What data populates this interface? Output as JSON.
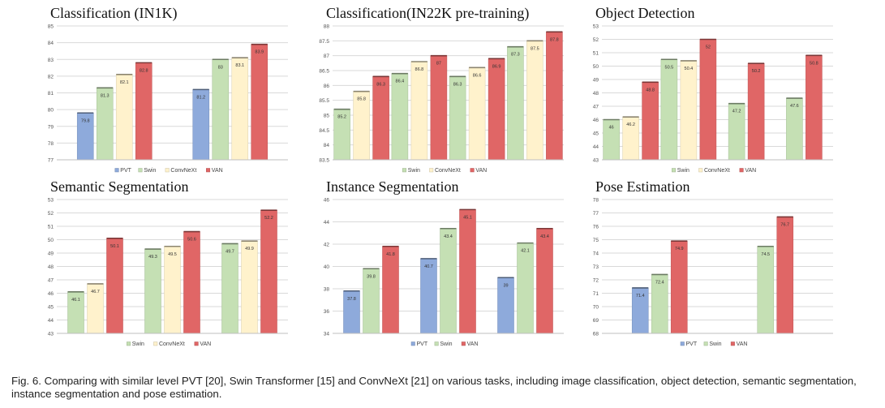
{
  "caption": "Fig. 6. Comparing with similar level PVT [20], Swin Transformer [15] and ConvNeXt [21] on various tasks, including image classification, object detection, semantic segmentation, instance segmentation and pose estimation.",
  "colors": {
    "PVT": "#8eaadb",
    "Swin": "#c5e0b4",
    "ConvNeXt": "#fff2cc",
    "VAN": "#e06666"
  },
  "chart_data": [
    {
      "type": "bar",
      "title": "Classification (IN1K)",
      "ylim": [
        77,
        85
      ],
      "ticks": [
        77,
        78,
        79,
        80,
        81,
        82,
        83,
        84,
        85
      ],
      "grid": true,
      "legend_position": "bottom",
      "legend": [
        "PVT",
        "Swin",
        "ConvNeXt",
        "VAN"
      ],
      "groups": [
        [
          {
            "series": "PVT",
            "value": 79.8,
            "label": "79.8"
          },
          {
            "series": "Swin",
            "value": 81.3,
            "label": "81.3"
          },
          {
            "series": "ConvNeXt",
            "value": 82.1,
            "label": "82.1"
          },
          {
            "series": "VAN",
            "value": 82.8,
            "label": "82.8"
          }
        ],
        [
          {
            "series": "PVT",
            "value": 81.2,
            "label": "81.2"
          },
          {
            "series": "Swin",
            "value": 83.0,
            "label": "83"
          },
          {
            "series": "ConvNeXt",
            "value": 83.1,
            "label": "83.1"
          },
          {
            "series": "VAN",
            "value": 83.9,
            "label": "83.9"
          }
        ]
      ]
    },
    {
      "type": "bar",
      "title": "Classification(IN22K pre-training)",
      "ylim": [
        83.5,
        88
      ],
      "ticks": [
        83.5,
        84,
        84.5,
        85,
        85.5,
        86,
        86.5,
        87,
        87.5,
        88
      ],
      "grid": true,
      "legend_position": "bottom",
      "legend": [
        "Swin",
        "ConvNeXt",
        "VAN"
      ],
      "groups": [
        [
          {
            "series": "Swin",
            "value": 85.2,
            "label": "85.2"
          },
          {
            "series": "ConvNeXt",
            "value": 85.8,
            "label": "85.8"
          },
          {
            "series": "VAN",
            "value": 86.3,
            "label": "86.3"
          }
        ],
        [
          {
            "series": "Swin",
            "value": 86.4,
            "label": "86.4"
          },
          {
            "series": "ConvNeXt",
            "value": 86.8,
            "label": "86.8"
          },
          {
            "series": "VAN",
            "value": 87.0,
            "label": "87"
          }
        ],
        [
          {
            "series": "Swin",
            "value": 86.3,
            "label": "86.3"
          },
          {
            "series": "ConvNeXt",
            "value": 86.6,
            "label": "86.6"
          },
          {
            "series": "VAN",
            "value": 86.9,
            "label": "86.9"
          }
        ],
        [
          {
            "series": "Swin",
            "value": 87.3,
            "label": "87.3"
          },
          {
            "series": "ConvNeXt",
            "value": 87.5,
            "label": "87.5"
          },
          {
            "series": "VAN",
            "value": 87.8,
            "label": "87.8"
          }
        ]
      ]
    },
    {
      "type": "bar",
      "title": "Object Detection",
      "ylim": [
        43,
        53
      ],
      "ticks": [
        43,
        44,
        45,
        46,
        47,
        48,
        49,
        50,
        51,
        52,
        53
      ],
      "grid": true,
      "legend_position": "bottom",
      "legend": [
        "Swin",
        "ConvNeXt",
        "VAN"
      ],
      "groups": [
        [
          {
            "series": "Swin",
            "value": 46.0,
            "label": "46"
          },
          {
            "series": "ConvNeXt",
            "value": 46.2,
            "label": "46.2"
          },
          {
            "series": "VAN",
            "value": 48.8,
            "label": "48.8"
          }
        ],
        [
          {
            "series": "Swin",
            "value": 50.5,
            "label": "50.5"
          },
          {
            "series": "ConvNeXt",
            "value": 50.4,
            "label": "50.4"
          },
          {
            "series": "VAN",
            "value": 52.0,
            "label": "52"
          }
        ],
        [
          {
            "series": "Swin",
            "value": 47.2,
            "label": "47.2"
          },
          {
            "series": "VAN",
            "value": 50.2,
            "label": "50.2"
          }
        ],
        [
          {
            "series": "Swin",
            "value": 47.6,
            "label": "47.6"
          },
          {
            "series": "VAN",
            "value": 50.8,
            "label": "50.8"
          }
        ]
      ]
    },
    {
      "type": "bar",
      "title": "Semantic Segmentation",
      "ylim": [
        43,
        53
      ],
      "ticks": [
        43,
        44,
        45,
        46,
        47,
        48,
        49,
        50,
        51,
        52,
        53
      ],
      "grid": true,
      "legend_position": "bottom",
      "legend": [
        "Swin",
        "ConvNeXt",
        "VAN"
      ],
      "groups": [
        [
          {
            "series": "Swin",
            "value": 46.1,
            "label": "46.1"
          },
          {
            "series": "ConvNeXt",
            "value": 46.7,
            "label": "46.7"
          },
          {
            "series": "VAN",
            "value": 50.1,
            "label": "50.1"
          }
        ],
        [
          {
            "series": "Swin",
            "value": 49.3,
            "label": "49.3"
          },
          {
            "series": "ConvNeXt",
            "value": 49.5,
            "label": "49.5"
          },
          {
            "series": "VAN",
            "value": 50.6,
            "label": "50.6"
          }
        ],
        [
          {
            "series": "Swin",
            "value": 49.7,
            "label": "49.7"
          },
          {
            "series": "ConvNeXt",
            "value": 49.9,
            "label": "49.9"
          },
          {
            "series": "VAN",
            "value": 52.2,
            "label": "52.2"
          }
        ]
      ]
    },
    {
      "type": "bar",
      "title": "Instance Segmentation",
      "ylim": [
        34,
        46
      ],
      "ticks": [
        34,
        36,
        38,
        40,
        42,
        44,
        46
      ],
      "grid": true,
      "legend_position": "bottom",
      "legend": [
        "PVT",
        "Swin",
        "VAN"
      ],
      "groups": [
        [
          {
            "series": "PVT",
            "value": 37.8,
            "label": "37.8"
          },
          {
            "series": "Swin",
            "value": 39.8,
            "label": "39.8"
          },
          {
            "series": "VAN",
            "value": 41.8,
            "label": "41.8"
          }
        ],
        [
          {
            "series": "PVT",
            "value": 40.7,
            "label": "40.7"
          },
          {
            "series": "Swin",
            "value": 43.4,
            "label": "43.4"
          },
          {
            "series": "VAN",
            "value": 45.1,
            "label": "45.1"
          }
        ],
        [
          {
            "series": "PVT",
            "value": 39.0,
            "label": "39"
          },
          {
            "series": "Swin",
            "value": 42.1,
            "label": "42.1"
          },
          {
            "series": "VAN",
            "value": 43.4,
            "label": "43.4"
          }
        ]
      ]
    },
    {
      "type": "bar",
      "title": "Pose Estimation",
      "ylim": [
        68,
        78
      ],
      "ticks": [
        68,
        69,
        70,
        71,
        72,
        73,
        74,
        75,
        76,
        77,
        78
      ],
      "grid": true,
      "legend_position": "bottom",
      "legend": [
        "PVT",
        "Swin",
        "VAN"
      ],
      "groups": [
        [
          {
            "series": "PVT",
            "value": 71.4,
            "label": "71.4"
          },
          {
            "series": "Swin",
            "value": 72.4,
            "label": "72.4"
          },
          {
            "series": "VAN",
            "value": 74.9,
            "label": "74.9"
          }
        ],
        [
          {
            "series": "Swin",
            "value": 74.5,
            "label": "74.5"
          },
          {
            "series": "VAN",
            "value": 76.7,
            "label": "76.7"
          }
        ]
      ]
    }
  ]
}
